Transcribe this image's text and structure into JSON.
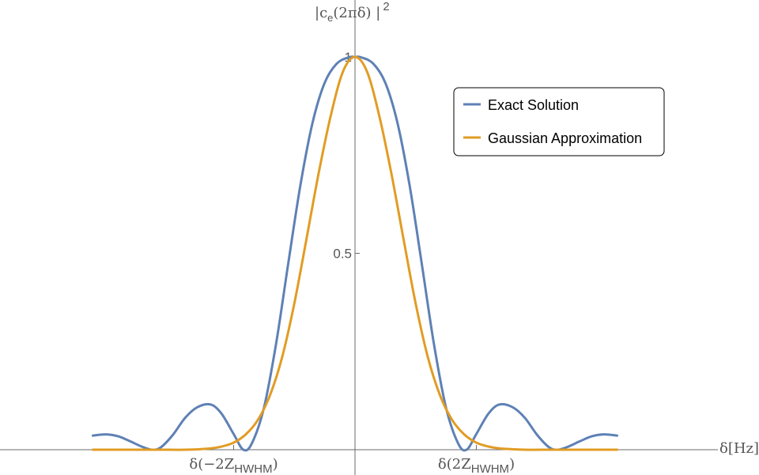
{
  "chart_data": {
    "type": "line",
    "ylabel": {
      "pre": "|c",
      "sub": "e",
      "mid": "(2πδ) |",
      "sup": "2"
    },
    "xlabel": "δ[Hz]",
    "x_tick_labels": [
      {
        "x": -1,
        "pre": "δ(−2Z",
        "sub": "HWHM",
        "post": ")"
      },
      {
        "x": 1,
        "pre": "δ(2Z",
        "sub": "HWHM",
        "post": ")"
      }
    ],
    "y_ticks": [
      {
        "value": 0.5,
        "label": "0.5"
      },
      {
        "value": 1,
        "label": "1"
      }
    ],
    "xlim": [
      -2.16,
      2.16
    ],
    "ylim": [
      0,
      1
    ],
    "legend_position": "top-right",
    "series": [
      {
        "name": "Exact Solution",
        "color": "#5E81B5",
        "x": [
          -2.16,
          -2.05,
          -1.95,
          -1.85,
          -1.75,
          -1.67,
          -1.6,
          -1.5,
          -1.4,
          -1.3,
          -1.19,
          -1.1,
          -1.0,
          -0.92,
          -0.85,
          -0.75,
          -0.65,
          -0.55,
          -0.45,
          -0.35,
          -0.25,
          -0.15,
          -0.05,
          0.0,
          0.05,
          0.15,
          0.25,
          0.35,
          0.45,
          0.55,
          0.65,
          0.75,
          0.85,
          0.92,
          1.0,
          1.1,
          1.19,
          1.3,
          1.4,
          1.5,
          1.6,
          1.67,
          1.75,
          1.85,
          1.95,
          2.05,
          2.16
        ],
        "y": [
          0.036,
          0.039,
          0.034,
          0.021,
          0.007,
          0.0,
          0.006,
          0.038,
          0.081,
          0.108,
          0.115,
          0.092,
          0.04,
          0.0,
          0.016,
          0.107,
          0.27,
          0.474,
          0.673,
          0.832,
          0.934,
          0.983,
          0.999,
          1.0,
          0.999,
          0.983,
          0.934,
          0.832,
          0.673,
          0.474,
          0.27,
          0.107,
          0.016,
          0.0,
          0.04,
          0.092,
          0.115,
          0.108,
          0.081,
          0.038,
          0.006,
          0.0,
          0.007,
          0.021,
          0.034,
          0.039,
          0.036
        ]
      },
      {
        "name": "Gaussian Approximation",
        "color": "#E19C24",
        "x": [
          -2.16,
          -1.8,
          -1.6,
          -1.4,
          -1.2,
          -1.1,
          -1.0,
          -0.9,
          -0.8,
          -0.7,
          -0.6,
          -0.5,
          -0.4,
          -0.3,
          -0.2,
          -0.1,
          0.0,
          0.1,
          0.2,
          0.3,
          0.4,
          0.5,
          0.6,
          0.7,
          0.8,
          0.9,
          1.0,
          1.1,
          1.2,
          1.4,
          1.6,
          1.8,
          2.16
        ],
        "y": [
          0.0,
          0.0,
          0.0,
          0.0,
          0.003,
          0.008,
          0.018,
          0.039,
          0.076,
          0.139,
          0.236,
          0.372,
          0.536,
          0.703,
          0.85,
          0.962,
          1.0,
          0.962,
          0.85,
          0.703,
          0.536,
          0.372,
          0.236,
          0.139,
          0.076,
          0.039,
          0.018,
          0.008,
          0.003,
          0.0,
          0.0,
          0.0,
          0.0
        ]
      }
    ]
  }
}
